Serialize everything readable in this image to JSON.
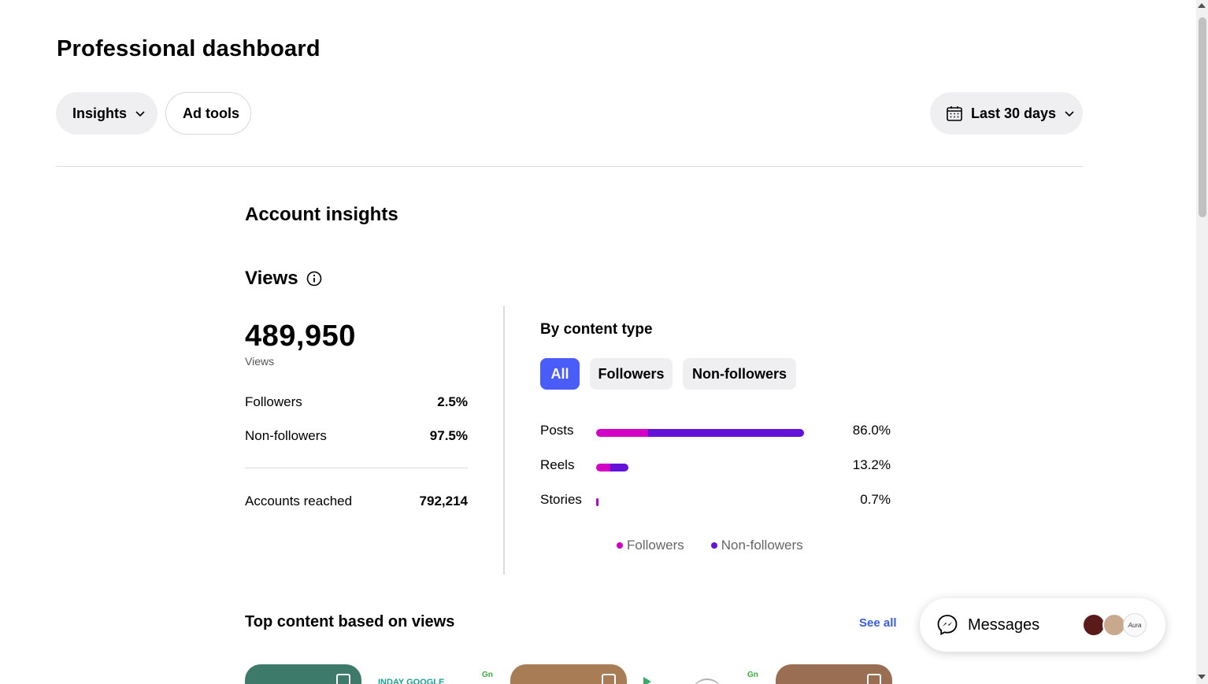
{
  "header": {
    "title": "Professional dashboard",
    "insights_label": "Insights",
    "adtools_label": "Ad tools",
    "date_range_label": "Last 30 days"
  },
  "account_insights": {
    "title": "Account insights",
    "views_title": "Views",
    "total_views": "489,950",
    "total_views_caption": "Views",
    "followers_label": "Followers",
    "followers_pct": "2.5%",
    "nonfollowers_label": "Non-followers",
    "nonfollowers_pct": "97.5%",
    "reached_label": "Accounts reached",
    "reached_value": "792,214"
  },
  "content_type": {
    "title": "By content type",
    "filters": [
      "All",
      "Followers",
      "Non-followers"
    ],
    "active_filter": "All",
    "rows": [
      {
        "label": "Posts",
        "pct": "86.0%",
        "share": 0.86,
        "followers_share": 0.25
      },
      {
        "label": "Reels",
        "pct": "13.2%",
        "share": 0.132,
        "followers_share": 0.45
      },
      {
        "label": "Stories",
        "pct": "0.7%",
        "share": 0.007,
        "followers_share": 0.5
      }
    ],
    "legend": {
      "followers": "Followers",
      "nonfollowers": "Non-followers"
    },
    "colors": {
      "followers": "#d300c5",
      "nonfollowers": "#6411d8",
      "active_chip": "#4a5df9"
    }
  },
  "top_content": {
    "title": "Top content based on views",
    "see_all": "See all",
    "strip_text": "INDAY GOOGLE",
    "mark": "Gn"
  },
  "messages": {
    "label": "Messages",
    "avatar_text": "Aura"
  }
}
